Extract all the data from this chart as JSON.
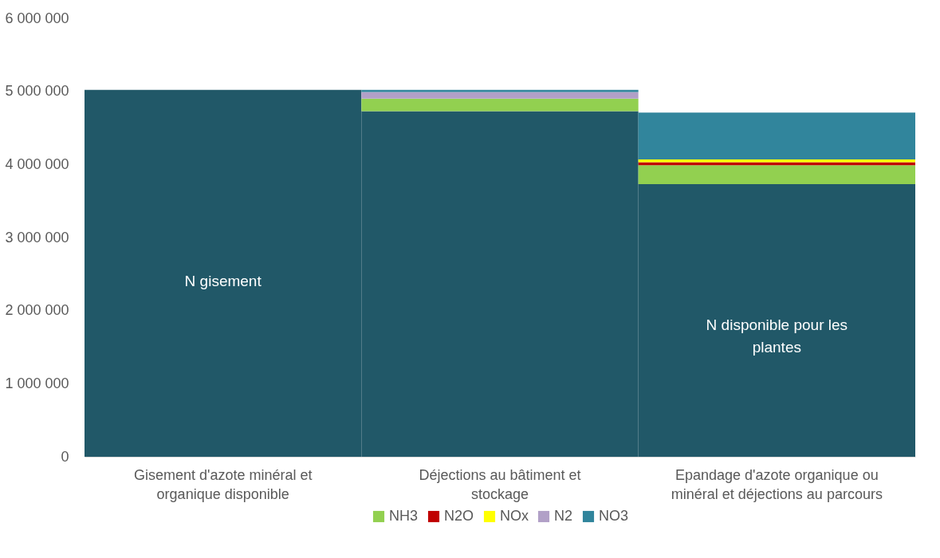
{
  "chart_data": {
    "type": "bar",
    "stacked": true,
    "categories": [
      "Gisement d'azote minéral et organique disponible",
      "Déjections au bâtiment et stockage",
      "Epandage d'azote organique ou minéral et déjections au parcours"
    ],
    "series": [
      {
        "color": "#215868",
        "values": [
          5020000,
          4730000,
          3730000
        ]
      },
      {
        "name": "NH3",
        "color": "#92d050",
        "values": [
          null,
          170000,
          260000
        ]
      },
      {
        "name": "N2O",
        "color": "#c00000",
        "values": [
          null,
          null,
          40000
        ]
      },
      {
        "name": "NOx",
        "color": "#ffff00",
        "values": [
          null,
          null,
          40000
        ]
      },
      {
        "name": "N2",
        "color": "#b1a0c7",
        "values": [
          null,
          90000,
          null
        ]
      },
      {
        "name": "NO3",
        "color": "#31859c",
        "values": [
          null,
          30000,
          640000
        ]
      }
    ],
    "ylim": [
      0,
      6000000
    ],
    "yticks": [
      {
        "value": 0,
        "label": "0"
      },
      {
        "value": 1000000,
        "label": "1 000 000"
      },
      {
        "value": 2000000,
        "label": "2 000 000"
      },
      {
        "value": 3000000,
        "label": "3 000 000"
      },
      {
        "value": 4000000,
        "label": "4 000 000"
      },
      {
        "value": 5000000,
        "label": "5 000 000"
      },
      {
        "value": 6000000,
        "label": "6 000 000"
      }
    ],
    "grid": false,
    "legend": "bottom",
    "annotations": [
      "N gisement",
      "N disponible pour les plantes"
    ]
  }
}
